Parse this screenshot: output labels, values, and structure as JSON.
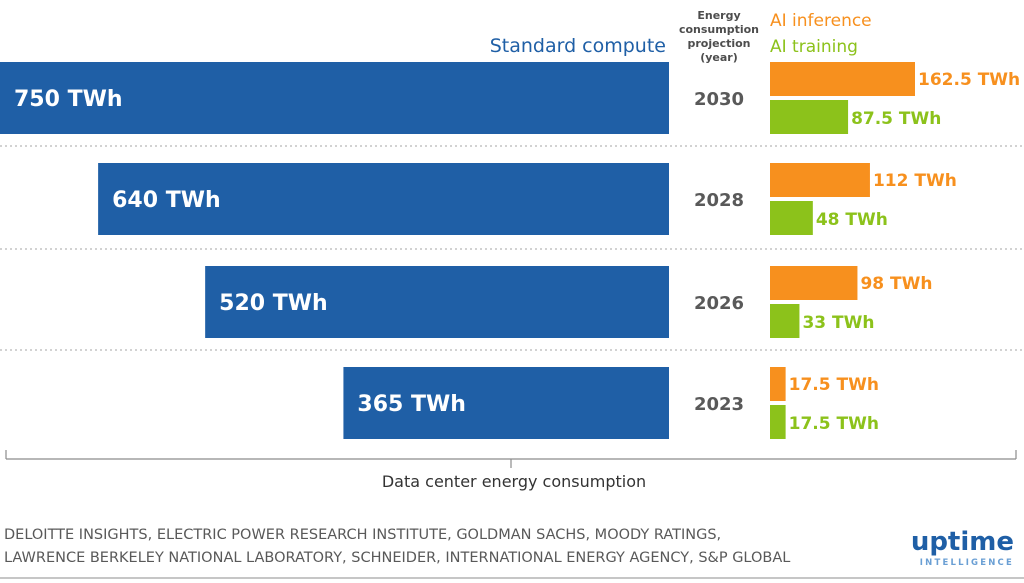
{
  "chart_data": {
    "type": "bar",
    "orientation": "horizontal",
    "categories": [
      "2030",
      "2028",
      "2026",
      "2023"
    ],
    "series": [
      {
        "name": "Standard compute",
        "values": [
          750,
          640,
          520,
          365
        ],
        "labels": [
          "750 TWh",
          "640 TWh",
          "520 TWh",
          "365 TWh"
        ],
        "color": "#1f5fa6"
      },
      {
        "name": "AI inference",
        "values": [
          162.5,
          112,
          98,
          17.5
        ],
        "labels": [
          "162.5 TWh",
          "112 TWh",
          "98 TWh",
          "17.5 TWh"
        ],
        "color": "#f7901e"
      },
      {
        "name": "AI training",
        "values": [
          87.5,
          48,
          33,
          17.5
        ],
        "labels": [
          "87.5 TWh",
          "48 TWh",
          "33 TWh",
          "17.5 TWh"
        ],
        "color": "#8cc21b"
      }
    ],
    "year_header": [
      "Energy",
      "consumption",
      "projection",
      "(year)"
    ],
    "xlabel": "Data center energy consumption",
    "legend": {
      "standard": "Standard compute",
      "inference": "AI inference",
      "training": "AI training"
    },
    "gridlines": "dotted separators between years"
  },
  "source_lines": [
    "DELOITTE INSIGHTS, ELECTRIC POWER RESEARCH INSTITUTE, GOLDMAN SACHS, MOODY RATINGS,",
    "LAWRENCE BERKELEY NATIONAL LABORATORY, SCHNEIDER, INTERNATIONAL ENERGY AGENCY, S&P GLOBAL"
  ],
  "brand": {
    "name": "uptime",
    "sub": "INTELLIGENCE",
    "color": "#1f5fa6",
    "sub_color": "#6a9fd4"
  }
}
